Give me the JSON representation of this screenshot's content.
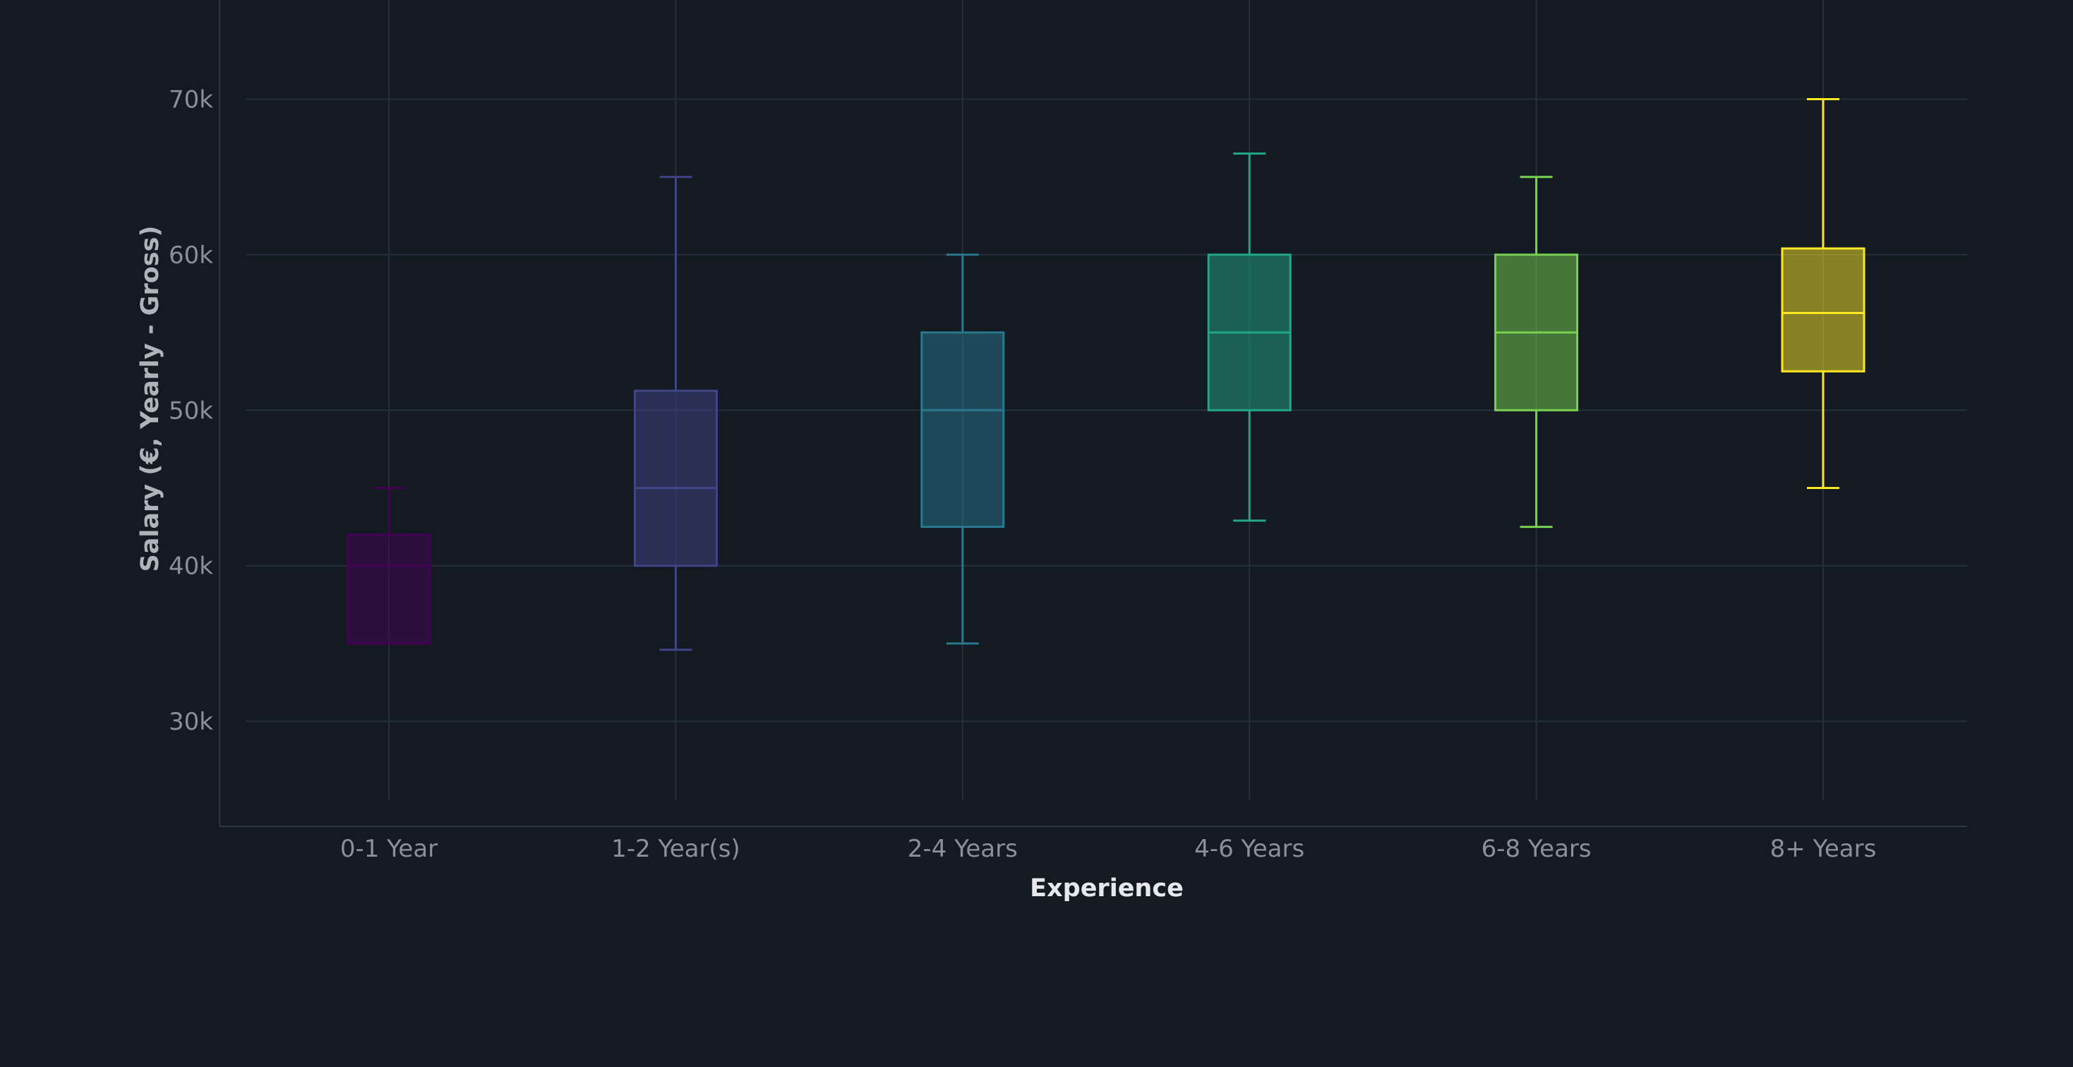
{
  "chart_data": {
    "type": "box",
    "xlabel": "Experience",
    "ylabel": "Salary (€, Yearly - Gross)",
    "ylim": [
      25000,
      75000
    ],
    "yticks": [
      30000,
      40000,
      50000,
      60000,
      70000
    ],
    "ytick_labels": [
      "30k",
      "40k",
      "50k",
      "60k",
      "70k"
    ],
    "grid": true,
    "legend": "none",
    "categories": [
      "0-1 Year",
      "1-2 Year(s)",
      "2-4 Years",
      "4-6 Years",
      "6-8 Years",
      "8+ Years"
    ],
    "series": [
      {
        "category": "0-1 Year",
        "min": 35000,
        "q1": 35000,
        "median": 40000,
        "q3": 42000,
        "max": 45000,
        "color": "#440154"
      },
      {
        "category": "1-2 Year(s)",
        "min": 34600,
        "q1": 40000,
        "median": 45000,
        "q3": 51250,
        "max": 65000,
        "color": "#414487"
      },
      {
        "category": "2-4 Years",
        "min": 35000,
        "q1": 42500,
        "median": 50000,
        "q3": 55000,
        "max": 60000,
        "color": "#2a788e"
      },
      {
        "category": "4-6 Years",
        "min": 42900,
        "q1": 50000,
        "median": 55000,
        "q3": 60000,
        "max": 66500,
        "color": "#22a884"
      },
      {
        "category": "6-8 Years",
        "min": 42500,
        "q1": 50000,
        "median": 55000,
        "q3": 60000,
        "max": 65000,
        "color": "#7ad151"
      },
      {
        "category": "8+ Years",
        "min": 45000,
        "q1": 52500,
        "median": 56250,
        "q3": 60400,
        "max": 70000,
        "color": "#fde725"
      }
    ],
    "colors": {
      "background": "#131a22",
      "grid": "#252e3b"
    }
  }
}
